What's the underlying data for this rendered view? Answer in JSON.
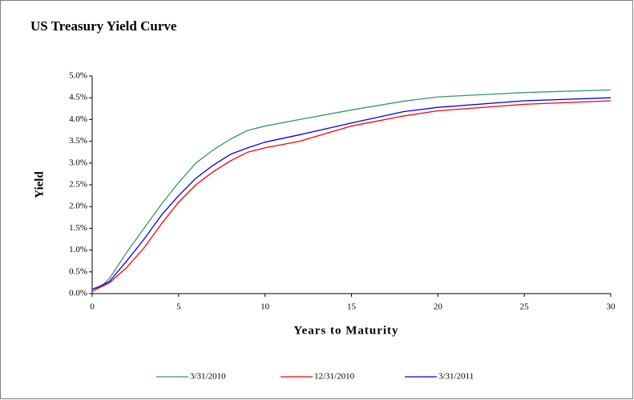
{
  "chart_data": {
    "type": "line",
    "title": "US Treasury Yield Curve",
    "x_label": "Years to Maturity",
    "y_label": "Yield",
    "x": [
      0,
      0.5,
      1,
      2,
      3,
      4,
      5,
      6,
      7,
      8,
      9,
      10,
      12,
      15,
      18,
      20,
      25,
      30
    ],
    "series": [
      {
        "name": "3/31/2010",
        "color": "#339966",
        "values": [
          0.1,
          0.15,
          0.35,
          0.95,
          1.5,
          2.05,
          2.55,
          3.0,
          3.3,
          3.55,
          3.75,
          3.85,
          4.0,
          4.22,
          4.42,
          4.52,
          4.62,
          4.68
        ]
      },
      {
        "name": "12/31/2010",
        "color": "#ff0000",
        "values": [
          0.05,
          0.15,
          0.25,
          0.6,
          1.05,
          1.6,
          2.1,
          2.5,
          2.8,
          3.05,
          3.25,
          3.35,
          3.5,
          3.85,
          4.08,
          4.2,
          4.35,
          4.43
        ]
      },
      {
        "name": "3/31/2011",
        "color": "#0000ff",
        "values": [
          0.1,
          0.18,
          0.28,
          0.75,
          1.25,
          1.8,
          2.25,
          2.65,
          2.95,
          3.2,
          3.35,
          3.48,
          3.65,
          3.92,
          4.18,
          4.28,
          4.43,
          4.5
        ]
      }
    ],
    "xlim": [
      0,
      30
    ],
    "xticks": [
      0,
      5,
      10,
      15,
      20,
      25,
      30
    ],
    "ylim": [
      0,
      5
    ],
    "yticks": [
      {
        "value": 0,
        "label": "0.0%"
      },
      {
        "value": 0.5,
        "label": "0.5%"
      },
      {
        "value": 1,
        "label": "1.0%"
      },
      {
        "value": 1.5,
        "label": "1.5%"
      },
      {
        "value": 2,
        "label": "2.0%"
      },
      {
        "value": 2.5,
        "label": "2.5%"
      },
      {
        "value": 3,
        "label": "3.0%"
      },
      {
        "value": 3.5,
        "label": "3.5%"
      },
      {
        "value": 4,
        "label": "4.0%"
      },
      {
        "value": 4.5,
        "label": "4.5%"
      },
      {
        "value": 5,
        "label": "5.0%"
      }
    ],
    "legend": "bottom"
  }
}
